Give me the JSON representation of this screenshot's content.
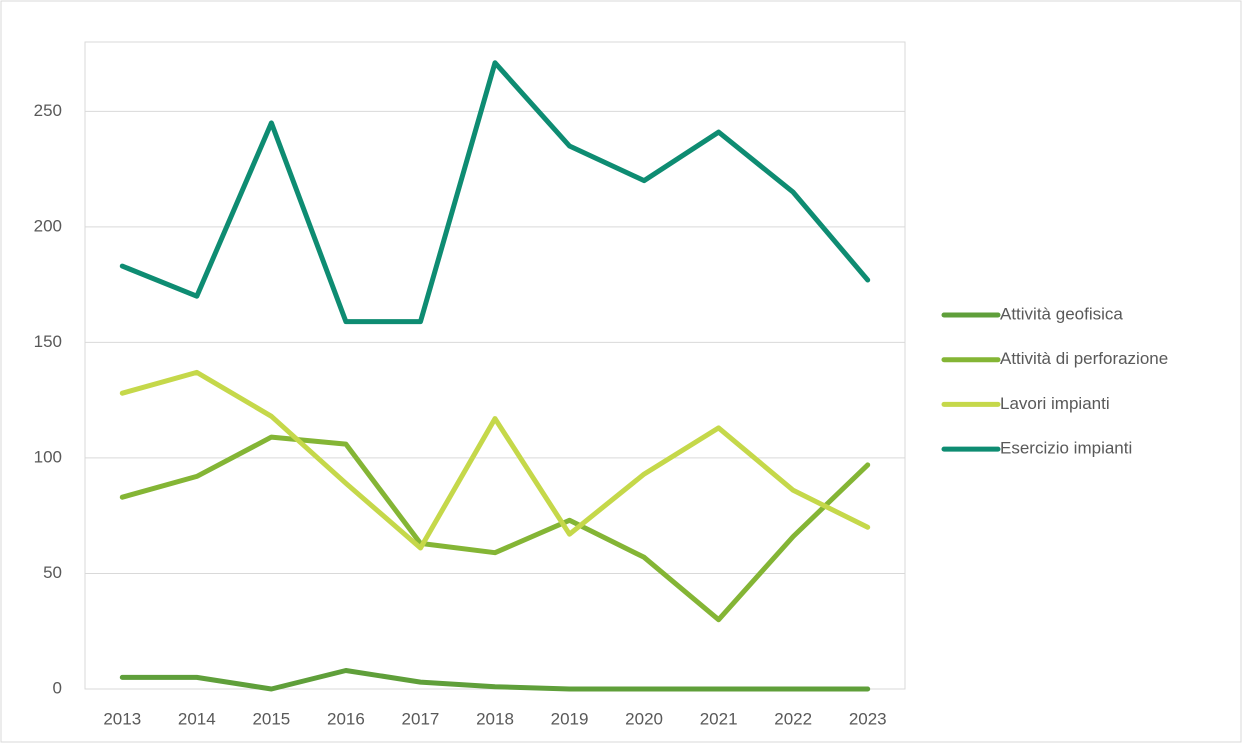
{
  "chart_data": {
    "type": "line",
    "categories": [
      "2013",
      "2014",
      "2015",
      "2016",
      "2017",
      "2018",
      "2019",
      "2020",
      "2021",
      "2022",
      "2023"
    ],
    "series": [
      {
        "name": "Attività geofisica",
        "color": "#5f9f3a",
        "values": [
          5,
          5,
          0,
          8,
          3,
          1,
          0,
          0,
          0,
          0,
          0
        ]
      },
      {
        "name": "Attività di perforazione",
        "color": "#84b535",
        "values": [
          83,
          92,
          109,
          106,
          63,
          59,
          73,
          57,
          30,
          66,
          97
        ]
      },
      {
        "name": "Lavori impianti",
        "color": "#c5d84a",
        "values": [
          128,
          137,
          118,
          89,
          61,
          117,
          67,
          93,
          113,
          86,
          70
        ]
      },
      {
        "name": "Esercizio impianti",
        "color": "#0e8c72",
        "values": [
          183,
          170,
          245,
          159,
          159,
          271,
          235,
          220,
          241,
          215,
          177
        ]
      }
    ],
    "ylim": [
      0,
      280
    ],
    "yticks": [
      0,
      50,
      100,
      150,
      200,
      250
    ],
    "grid": true,
    "legend": "right"
  }
}
